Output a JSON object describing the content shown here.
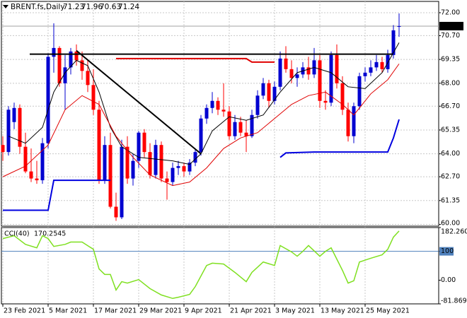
{
  "chart_data": [
    {
      "type": "candlestick",
      "title": "BRENT.fs,Daily",
      "xlim": [
        -0.25,
        77
      ],
      "xticks": [
        {
          "value": 0,
          "label": "23 Feb 2021"
        },
        {
          "value": 8,
          "label": "5 Mar 2021"
        },
        {
          "value": 16,
          "label": "17 Mar 2021"
        },
        {
          "value": 24,
          "label": "29 Mar 2021"
        },
        {
          "value": 32,
          "label": "9 Apr 2021"
        },
        {
          "value": 40,
          "label": "21 Apr 2021"
        },
        {
          "value": 48,
          "label": "3 May 2021"
        },
        {
          "value": 56,
          "label": "13 May 2021"
        },
        {
          "value": 64,
          "label": "25 May 2021"
        }
      ],
      "ylim": [
        59.9,
        72.64
      ],
      "yticks": [
        {
          "value": 72,
          "label": "72.00"
        },
        {
          "value": 70.7,
          "label": "70.70"
        },
        {
          "value": 69.35,
          "label": "69.35"
        },
        {
          "value": 68,
          "label": "68.00"
        },
        {
          "value": 66.7,
          "label": "66.70"
        },
        {
          "value": 65.35,
          "label": "65.35"
        },
        {
          "value": 64,
          "label": "64.00"
        },
        {
          "value": 62.7,
          "label": "62.70"
        },
        {
          "value": 61.35,
          "label": "61.35"
        },
        {
          "value": 60,
          "label": "60.00"
        }
      ],
      "grid": true,
      "up_color": "#0000d0",
      "down_color": "#ff0000",
      "open": [
        64.5,
        64.1,
        65.8,
        66.6,
        64.4,
        63.0,
        62.6,
        62.5,
        64.6,
        69.5,
        70.0,
        68.0,
        68.9,
        69.8,
        69.3,
        68.7,
        67.9,
        66.5,
        62.5,
        64.5,
        61.0,
        60.4,
        64.4,
        62.6,
        63.6,
        65.2,
        64.1,
        62.8,
        64.5,
        62.6,
        62.4,
        63.2,
        63.3,
        63.0,
        63.5,
        64.1,
        66.0,
        66.6,
        67.0,
        66.5,
        66.4,
        65.0,
        65.8,
        65.2,
        65.0,
        66.2,
        67.3,
        68.0,
        67.0,
        67.8,
        69.4,
        68.8,
        68.3,
        68.5,
        68.9,
        68.5,
        69.3,
        67.0,
        66.9,
        69.6,
        68.0,
        66.5,
        65.0,
        66.7,
        68.4,
        68.6,
        68.9,
        69.2,
        68.8,
        69.6,
        71.23
      ],
      "high": [
        65.0,
        66.7,
        66.9,
        66.8,
        65.2,
        64.3,
        63.6,
        64.9,
        69.7,
        71.4,
        70.1,
        69.6,
        70.0,
        70.2,
        69.8,
        69.3,
        68.8,
        67.0,
        65.0,
        65.2,
        61.8,
        64.8,
        65.0,
        64.0,
        65.3,
        65.4,
        64.6,
        64.8,
        64.7,
        63.0,
        63.5,
        63.6,
        63.5,
        63.7,
        64.3,
        66.2,
        66.8,
        67.5,
        67.2,
        68.0,
        66.7,
        66.2,
        66.1,
        65.9,
        66.5,
        67.6,
        68.3,
        68.2,
        68.1,
        69.8,
        70.1,
        69.3,
        68.9,
        69.2,
        69.5,
        70.0,
        69.6,
        67.6,
        69.8,
        70.2,
        68.4,
        66.9,
        66.9,
        68.6,
        68.9,
        69.3,
        69.6,
        69.5,
        69.9,
        71.3,
        71.96
      ],
      "low": [
        63.6,
        63.9,
        65.4,
        64.0,
        62.9,
        62.4,
        62.3,
        62.3,
        64.3,
        68.6,
        67.8,
        66.5,
        68.5,
        69.0,
        68.2,
        67.5,
        66.2,
        62.3,
        62.3,
        60.9,
        60.2,
        60.3,
        62.3,
        62.2,
        63.2,
        63.8,
        62.6,
        62.6,
        62.4,
        61.4,
        62.2,
        62.8,
        62.7,
        62.8,
        63.3,
        63.9,
        65.7,
        66.3,
        66.2,
        66.1,
        64.8,
        64.8,
        65.0,
        64.1,
        64.9,
        66.0,
        67.1,
        66.6,
        66.8,
        67.6,
        68.6,
        68.0,
        67.8,
        68.3,
        68.2,
        68.3,
        66.6,
        66.5,
        66.7,
        67.7,
        66.2,
        64.7,
        64.6,
        66.5,
        68.1,
        68.4,
        68.7,
        68.6,
        68.6,
        69.4,
        70.63
      ],
      "close": [
        64.1,
        66.5,
        66.6,
        64.4,
        63.0,
        62.6,
        62.5,
        64.6,
        69.5,
        70.0,
        68.0,
        68.9,
        69.8,
        69.3,
        68.7,
        67.9,
        66.5,
        62.5,
        64.5,
        61.0,
        60.4,
        64.4,
        62.6,
        63.6,
        65.2,
        64.1,
        62.8,
        64.5,
        62.6,
        62.4,
        63.2,
        63.3,
        63.0,
        63.5,
        64.1,
        66.0,
        66.6,
        67.0,
        66.5,
        66.4,
        65.0,
        65.8,
        65.2,
        65.0,
        66.2,
        67.3,
        68.0,
        67.0,
        67.8,
        69.4,
        68.8,
        68.3,
        68.5,
        68.9,
        68.5,
        69.3,
        67.0,
        66.9,
        69.6,
        68.0,
        66.5,
        65.0,
        66.7,
        68.4,
        68.6,
        68.9,
        69.2,
        68.8,
        69.6,
        71.0,
        71.24
      ],
      "overlays": [
        {
          "color": "#000000",
          "line_width": 1,
          "x": [
            1,
            4,
            7,
            9,
            11,
            13,
            15,
            17,
            19,
            21,
            24,
            27,
            30,
            33,
            35,
            37,
            40,
            43,
            46,
            49,
            52,
            55,
            58,
            61,
            64,
            67,
            70
          ],
          "values": [
            65.0,
            64.6,
            65.5,
            67.5,
            68.6,
            69.3,
            69.0,
            67.5,
            65.5,
            64.4,
            63.8,
            63.7,
            63.6,
            63.4,
            64.0,
            65.3,
            66.1,
            65.9,
            66.2,
            67.5,
            68.6,
            68.9,
            68.6,
            67.8,
            67.7,
            68.6,
            70.3
          ]
        },
        {
          "color": "#e00000",
          "line_width": 1,
          "x": [
            0,
            4,
            8,
            11,
            14,
            17,
            20,
            23,
            26,
            30,
            33,
            36,
            39,
            42,
            45,
            48,
            51,
            54,
            57,
            60,
            62,
            65,
            68,
            70
          ],
          "values": [
            62.7,
            63.3,
            64.5,
            66.5,
            67.3,
            66.8,
            65.0,
            63.8,
            62.8,
            62.2,
            62.4,
            63.2,
            64.3,
            64.9,
            65.2,
            66.0,
            66.8,
            67.3,
            67.5,
            66.8,
            66.2,
            67.4,
            68.2,
            69.1
          ]
        },
        {
          "color": "#0000e0",
          "line_width": 2,
          "x": [
            0,
            8,
            9,
            19,
            20,
            49,
            50,
            55,
            68,
            69,
            70
          ],
          "values": [
            60.8,
            60.8,
            62.5,
            62.5,
            null,
            63.8,
            64.05,
            64.1,
            64.1,
            64.9,
            65.95
          ]
        },
        {
          "color": "#e00000",
          "line_width": 2,
          "x": [
            20,
            43,
            44,
            48
          ],
          "values": [
            69.4,
            69.4,
            69.2,
            69.2
          ]
        },
        {
          "color": "#000000",
          "line_width": 2,
          "x": [
            4.75,
            68.9
          ],
          "values": [
            69.65,
            69.65
          ]
        },
        {
          "color": "#000000",
          "line_width": 2,
          "x": [
            13,
            35
          ],
          "values": [
            69.85,
            64.0
          ]
        }
      ]
    },
    {
      "type": "line",
      "title": "CCI(40)",
      "xlim": [
        -0.25,
        77
      ],
      "ylim": [
        -81.8697,
        182.2605
      ],
      "yticks": [
        182.2605,
        100,
        {
          "value": 0,
          "label": "0.00"
        },
        -81.8697
      ],
      "levels": [
        100
      ],
      "level_color": "#4f81bd",
      "series": [
        {
          "color": "#7fe020",
          "x": [
            0,
            2,
            4,
            6,
            7,
            8,
            9,
            11,
            12,
            14,
            16,
            17,
            18,
            19,
            20,
            21,
            22,
            24,
            26,
            28,
            30,
            31,
            33,
            34,
            36,
            37,
            39,
            41,
            43,
            44,
            46,
            48,
            49,
            51,
            52,
            53,
            54,
            56,
            57,
            58,
            60,
            61,
            62,
            63,
            65,
            67,
            68,
            69,
            70
          ],
          "values": [
            144,
            154,
            124,
            112,
            154,
            144,
            117,
            124,
            132,
            132,
            107,
            39,
            20,
            20,
            -34,
            -5,
            -10,
            2,
            -29,
            -51,
            -63,
            -59,
            -49,
            -22,
            51,
            59,
            56,
            27,
            -5,
            27,
            63,
            51,
            120,
            98,
            83,
            100,
            120,
            83,
            100,
            112,
            34,
            -10,
            -2,
            63,
            76,
            88,
            107,
            149,
            170.2545
          ]
        }
      ]
    }
  ]
}
